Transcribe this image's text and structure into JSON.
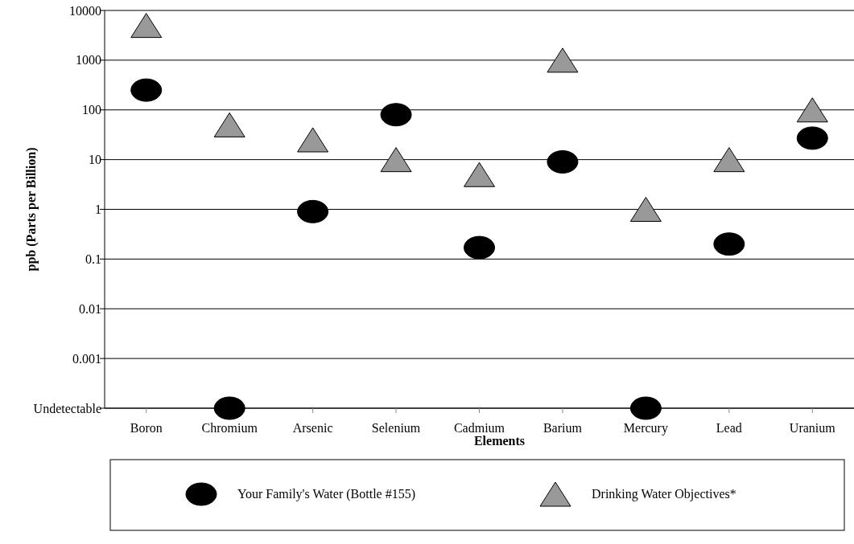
{
  "chart_data": {
    "type": "scatter",
    "xlabel": "Elements",
    "ylabel": "ppb (Parts per Billion)",
    "categories": [
      "Boron",
      "Chromium",
      "Arsenic",
      "Selenium",
      "Cadmium",
      "Barium",
      "Mercury",
      "Lead",
      "Uranium"
    ],
    "series": [
      {
        "name": "Your Family's Water (Bottle #155)",
        "color": "#000000",
        "marker": "circle",
        "values": [
          250,
          0.0001,
          0.9,
          80,
          0.17,
          9,
          0.0001,
          0.2,
          27
        ]
      },
      {
        "name": "Drinking Water Objectives*",
        "color": "#999999",
        "marker": "triangle",
        "values": [
          5000,
          50,
          25,
          10,
          5,
          1000,
          1,
          10,
          100
        ]
      }
    ],
    "log": "y",
    "ylim": [
      0.0001,
      10000
    ],
    "yticks": [
      {
        "value": 0.0001,
        "label": "Undetectable"
      },
      0.001,
      0.01,
      0.1,
      1,
      10,
      100,
      1000,
      10000
    ],
    "grid": "y",
    "legend": "bottom"
  }
}
